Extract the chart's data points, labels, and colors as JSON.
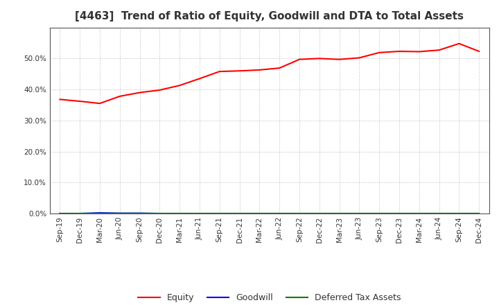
{
  "title": "[4463]  Trend of Ratio of Equity, Goodwill and DTA to Total Assets",
  "x_labels": [
    "Sep-19",
    "Dec-19",
    "Mar-20",
    "Jun-20",
    "Sep-20",
    "Dec-20",
    "Mar-21",
    "Jun-21",
    "Sep-21",
    "Dec-21",
    "Mar-22",
    "Jun-22",
    "Sep-22",
    "Dec-22",
    "Mar-23",
    "Jun-23",
    "Sep-23",
    "Dec-23",
    "Mar-24",
    "Jun-24",
    "Sep-24",
    "Dec-24"
  ],
  "equity": [
    0.368,
    0.362,
    0.355,
    0.378,
    0.39,
    0.398,
    0.413,
    0.435,
    0.458,
    0.46,
    0.463,
    0.469,
    0.497,
    0.5,
    0.497,
    0.502,
    0.519,
    0.523,
    0.522,
    0.527,
    0.548,
    0.523
  ],
  "goodwill": [
    0.0,
    0.0,
    0.002,
    0.001,
    0.001,
    0.0,
    0.0,
    0.0,
    0.0,
    0.0,
    0.0,
    0.0,
    0.0,
    0.0,
    0.0,
    0.0,
    0.0,
    0.0,
    0.0,
    0.0,
    0.0,
    0.0
  ],
  "dta": [
    0.0,
    0.0,
    0.0,
    0.0,
    0.0,
    0.0,
    0.0,
    0.0,
    0.0,
    0.0,
    0.0,
    0.0,
    0.0,
    0.0,
    0.0,
    0.0,
    0.0,
    0.0,
    0.0,
    0.0,
    0.0,
    0.0
  ],
  "equity_color": "#FF0000",
  "goodwill_color": "#0000FF",
  "dta_color": "#008000",
  "ylim": [
    0.0,
    0.6
  ],
  "yticks": [
    0.0,
    0.1,
    0.2,
    0.3,
    0.4,
    0.5
  ],
  "background_color": "#FFFFFF",
  "grid_color": "#AAAAAA",
  "title_fontsize": 11,
  "title_color": "#333333",
  "legend_labels": [
    "Equity",
    "Goodwill",
    "Deferred Tax Assets"
  ],
  "tick_fontsize": 7.5,
  "legend_fontsize": 9
}
